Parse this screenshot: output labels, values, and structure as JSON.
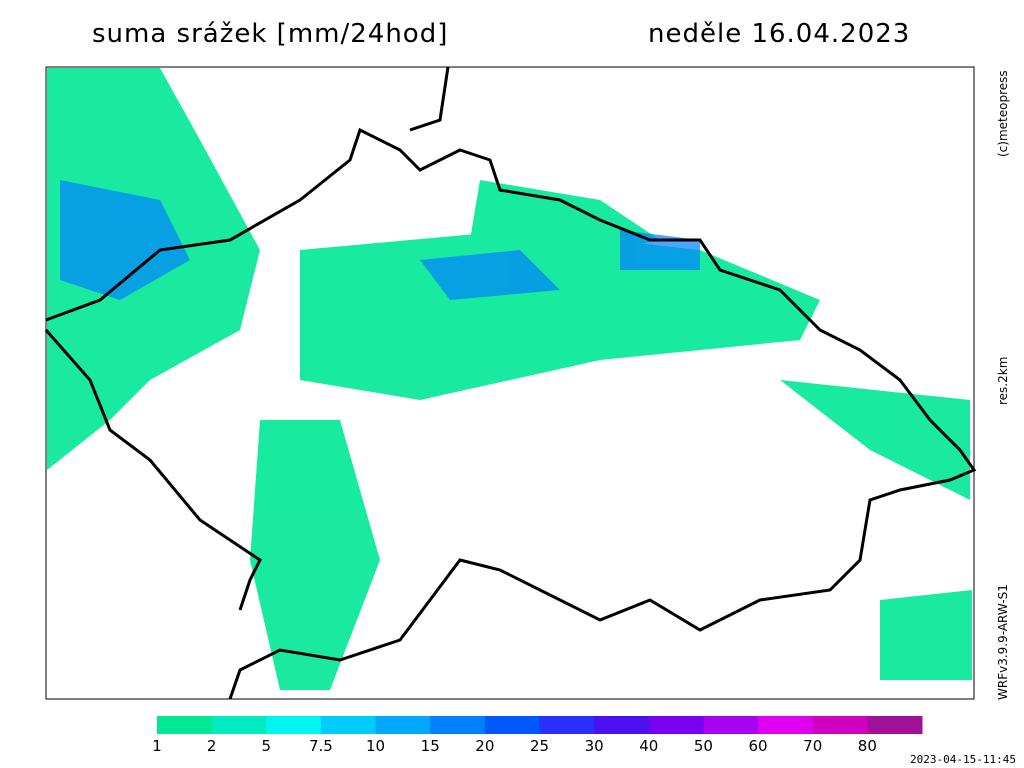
{
  "header": {
    "title": "suma srážek [mm/24hod]",
    "date": "neděle 16.04.2023"
  },
  "side_labels": {
    "copyright": "(c)meteopress",
    "resolution": "res.2km",
    "model": "WRFv3.9.9-ARW-S1"
  },
  "timestamp": "2023-04-15-11:45",
  "legend": {
    "items": [
      {
        "value": 1,
        "color": "#00e896"
      },
      {
        "value": 2,
        "color": "#00ecc0"
      },
      {
        "value": 5,
        "color": "#00f4f0"
      },
      {
        "value": 7.5,
        "color": "#00ccff"
      },
      {
        "value": 10,
        "color": "#00a8ff"
      },
      {
        "value": 15,
        "color": "#0080ff"
      },
      {
        "value": 20,
        "color": "#0058ff"
      },
      {
        "value": 25,
        "color": "#2830ff"
      },
      {
        "value": 30,
        "color": "#4a10f0"
      },
      {
        "value": 40,
        "color": "#7a00f0"
      },
      {
        "value": 50,
        "color": "#a800f0"
      },
      {
        "value": 60,
        "color": "#e000f0"
      },
      {
        "value": 70,
        "color": "#d000c0"
      },
      {
        "value": 80,
        "color": "#a01098"
      }
    ]
  }
}
